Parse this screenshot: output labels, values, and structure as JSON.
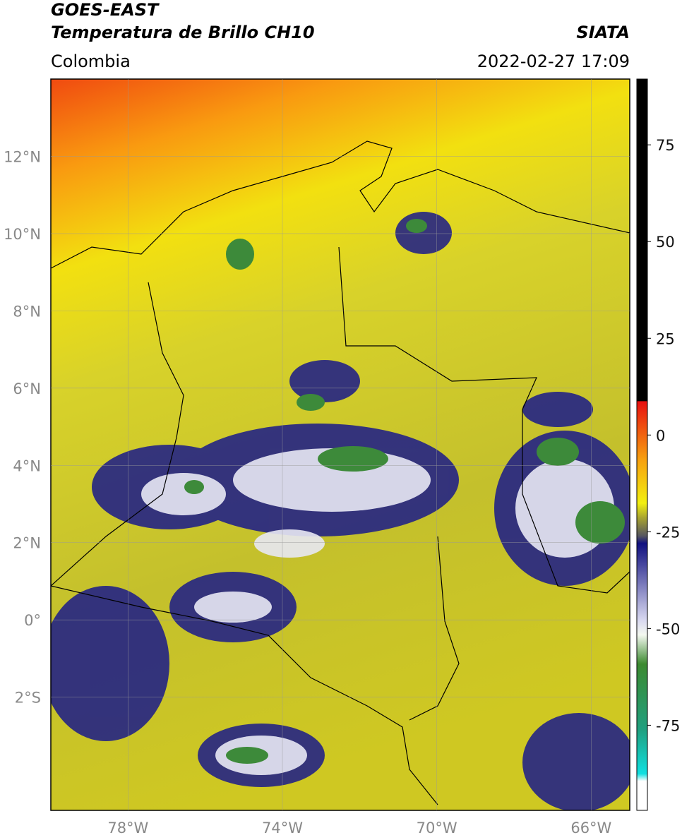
{
  "header": {
    "title": "GOES-EAST",
    "subtitle": "Temperatura de Brillo CH10",
    "region": "Colombia",
    "source": "SIATA",
    "timestamp": "2022-02-27 17:09"
  },
  "map": {
    "lonlim": [
      -80,
      -65
    ],
    "latlim": [
      -4.93,
      14
    ],
    "lon_ticks": [
      {
        "value": -78,
        "label": "78°W"
      },
      {
        "value": -74,
        "label": "74°W"
      },
      {
        "value": -70,
        "label": "70°W"
      },
      {
        "value": -66,
        "label": "66°W"
      }
    ],
    "lat_ticks": [
      {
        "value": 12,
        "label": "12°N"
      },
      {
        "value": 10,
        "label": "10°N"
      },
      {
        "value": 8,
        "label": "8°N"
      },
      {
        "value": 6,
        "label": "6°N"
      },
      {
        "value": 4,
        "label": "4°N"
      },
      {
        "value": 2,
        "label": "2°N"
      },
      {
        "value": 0,
        "label": "0°"
      },
      {
        "value": -2,
        "label": "2°S"
      }
    ]
  },
  "colorbar": {
    "lim": [
      -97,
      92
    ],
    "ticks": [
      75,
      50,
      25,
      0,
      -25,
      -50,
      -75
    ]
  }
}
